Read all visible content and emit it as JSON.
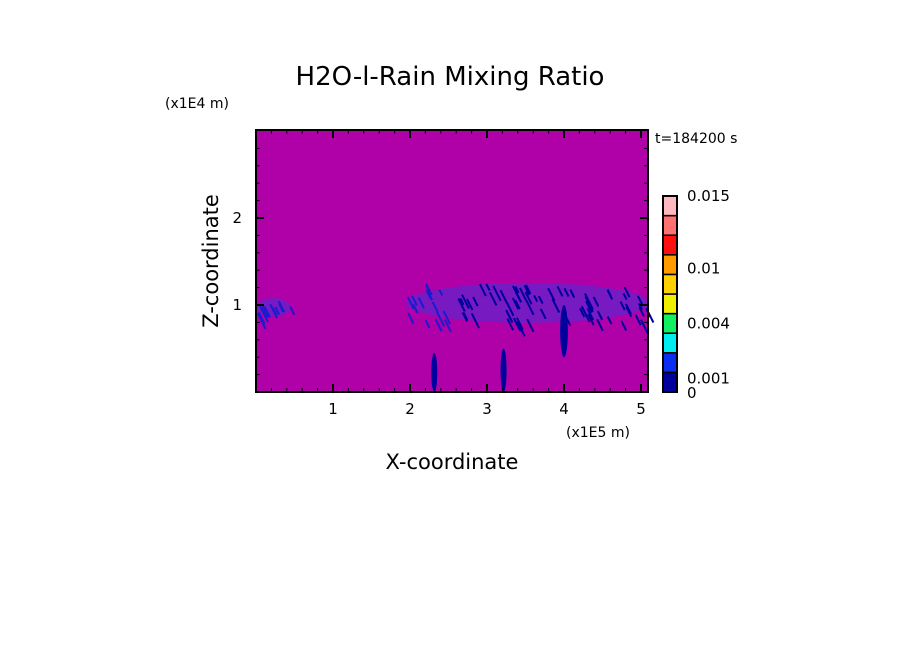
{
  "chart_data": {
    "type": "heatmap",
    "title": "H2O-l-Rain Mixing Ratio",
    "xlabel": "X-coordinate",
    "ylabel": "Z-coordinate",
    "x_unit": "(x1E5 m)",
    "y_unit": "(x1E4 m)",
    "time_label": "t=184200 s",
    "xlim": [
      0,
      5.1
    ],
    "ylim": [
      0,
      3.0
    ],
    "x_ticks": [
      1,
      2,
      3,
      4,
      5
    ],
    "x_tick_labels": [
      "1",
      "2",
      "3",
      "4",
      "5"
    ],
    "y_ticks": [
      1,
      2
    ],
    "y_tick_labels": [
      "1",
      "2"
    ],
    "background_color": "#b000a8",
    "colorbar": {
      "colors": [
        "#00009c",
        "#0a2ef0",
        "#00eef0",
        "#10f060",
        "#eef000",
        "#ffd000",
        "#ff9a00",
        "#ff1010",
        "#ff7070",
        "#ffb8c0"
      ],
      "labels": [
        {
          "value": 0,
          "text": "0"
        },
        {
          "value": 0.001,
          "text": "0.001"
        },
        {
          "value": 0.004,
          "text": "0.004"
        },
        {
          "value": 0.01,
          "text": "0.01"
        },
        {
          "value": 0.015,
          "text": "0.015"
        }
      ],
      "label_positions": [
        0,
        0.7,
        3.5,
        6.3,
        10
      ]
    },
    "features": [
      {
        "name": "left rain band",
        "x": [
          0,
          0.45
        ],
        "z": [
          0.85,
          1.1
        ]
      },
      {
        "name": "main rain band",
        "x": [
          1.95,
          5.1
        ],
        "z": [
          0.75,
          1.3
        ]
      },
      {
        "name": "shaft 1",
        "x": [
          2.3,
          2.33
        ],
        "z": [
          0,
          0.45
        ]
      },
      {
        "name": "shaft 2",
        "x": [
          3.2,
          3.23
        ],
        "z": [
          0,
          0.5
        ]
      },
      {
        "name": "shaft 3",
        "x": [
          3.95,
          4.05
        ],
        "z": [
          0.4,
          1.0
        ]
      }
    ]
  }
}
